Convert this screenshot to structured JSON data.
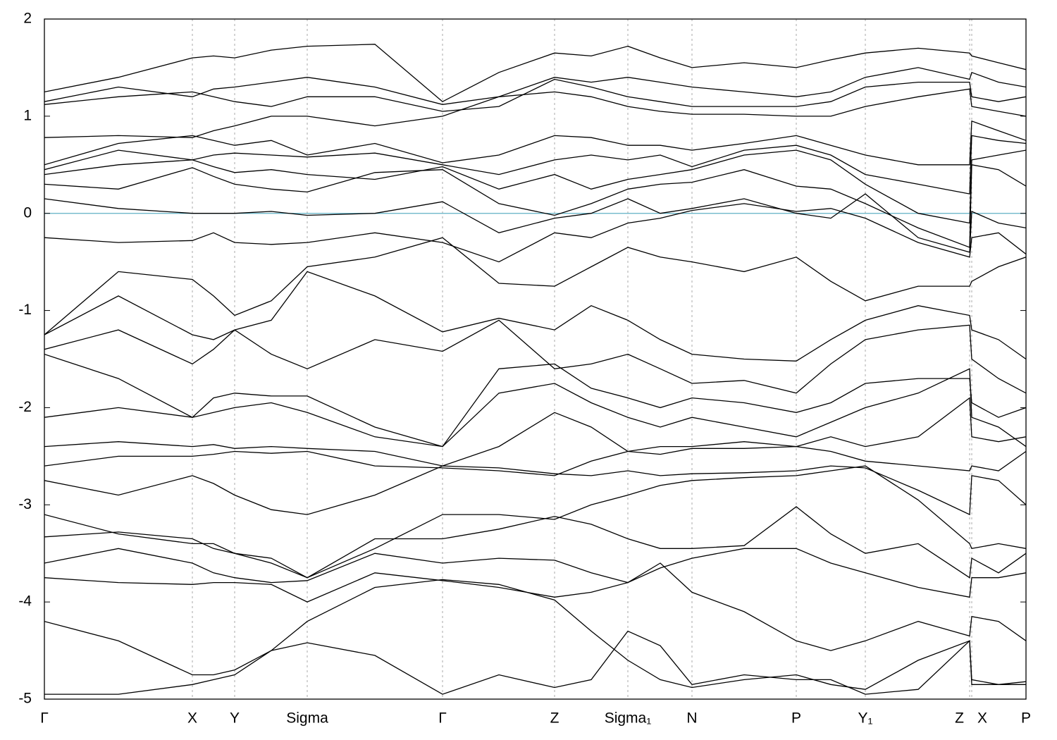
{
  "chart_data": {
    "type": "line",
    "color": "#000000",
    "xlim": [
      0,
      13.93
    ],
    "ylim": [
      -5,
      2
    ],
    "yticks": [
      -5,
      -4,
      -3,
      -2,
      -1,
      0,
      1,
      2
    ],
    "xticks": [
      {
        "value": 0,
        "label": "Γ"
      },
      {
        "value": 2.1,
        "label": "X"
      },
      {
        "value": 2.7,
        "label": "Y"
      },
      {
        "value": 3.73,
        "label": "Sigma"
      },
      {
        "value": 5.65,
        "label": "Γ"
      },
      {
        "value": 7.24,
        "label": "Z"
      },
      {
        "value": 8.28,
        "label": "Sigma₁"
      },
      {
        "value": 9.19,
        "label": "N"
      },
      {
        "value": 10.67,
        "label": "P"
      },
      {
        "value": 11.65,
        "label": "Y₁"
      },
      {
        "value": 13.13,
        "label": "Z"
      },
      {
        "value": 13.16,
        "label": "X"
      },
      {
        "value": 13.93,
        "label": "P"
      }
    ],
    "grid": true,
    "fermi_level": 0,
    "fermi_color": "#5fb0c4",
    "x": [
      0,
      1.05,
      2.1,
      2.4,
      2.7,
      3.22,
      3.73,
      4.69,
      5.65,
      6.45,
      7.24,
      7.76,
      8.28,
      8.74,
      9.19,
      9.93,
      10.67,
      11.16,
      11.65,
      12.4,
      13.13,
      13.16,
      13.54,
      13.93
    ],
    "series": [
      {
        "values": [
          1.25,
          1.4,
          1.6,
          1.62,
          1.6,
          1.68,
          1.72,
          1.74,
          1.15,
          1.45,
          1.65,
          1.62,
          1.72,
          1.6,
          1.5,
          1.55,
          1.5,
          1.58,
          1.65,
          1.7,
          1.65,
          1.62,
          1.55,
          1.48
        ]
      },
      {
        "values": [
          1.15,
          1.3,
          1.2,
          1.28,
          1.3,
          1.35,
          1.4,
          1.3,
          1.12,
          1.2,
          1.4,
          1.35,
          1.4,
          1.35,
          1.3,
          1.25,
          1.2,
          1.25,
          1.4,
          1.5,
          1.38,
          1.45,
          1.35,
          1.3
        ]
      },
      {
        "values": [
          1.12,
          1.2,
          1.25,
          1.2,
          1.15,
          1.1,
          1.2,
          1.2,
          1.05,
          1.1,
          1.38,
          1.3,
          1.2,
          1.15,
          1.1,
          1.1,
          1.1,
          1.15,
          1.3,
          1.35,
          1.35,
          1.2,
          1.15,
          1.2
        ]
      },
      {
        "values": [
          0.78,
          0.8,
          0.78,
          0.85,
          0.9,
          1.0,
          1.0,
          0.9,
          1.0,
          1.2,
          1.25,
          1.2,
          1.1,
          1.05,
          1.02,
          1.02,
          1.0,
          1.0,
          1.1,
          1.2,
          1.28,
          1.1,
          1.05,
          1.0
        ]
      },
      {
        "values": [
          0.5,
          0.72,
          0.8,
          0.75,
          0.7,
          0.75,
          0.6,
          0.72,
          0.52,
          0.6,
          0.8,
          0.78,
          0.7,
          0.7,
          0.65,
          0.72,
          0.8,
          0.7,
          0.6,
          0.5,
          0.5,
          0.95,
          0.85,
          0.75
        ]
      },
      {
        "values": [
          0.45,
          0.65,
          0.55,
          0.6,
          0.62,
          0.6,
          0.58,
          0.62,
          0.5,
          0.4,
          0.55,
          0.6,
          0.55,
          0.6,
          0.48,
          0.65,
          0.7,
          0.6,
          0.4,
          0.3,
          0.2,
          0.8,
          0.75,
          0.72
        ]
      },
      {
        "values": [
          0.4,
          0.5,
          0.55,
          0.48,
          0.42,
          0.45,
          0.4,
          0.35,
          0.48,
          0.25,
          0.4,
          0.25,
          0.35,
          0.4,
          0.45,
          0.6,
          0.65,
          0.55,
          0.3,
          0.0,
          -0.1,
          0.55,
          0.6,
          0.65
        ]
      },
      {
        "values": [
          0.3,
          0.25,
          0.47,
          0.38,
          0.3,
          0.25,
          0.22,
          0.42,
          0.45,
          0.1,
          -0.02,
          0.1,
          0.25,
          0.3,
          0.32,
          0.45,
          0.28,
          0.25,
          0.1,
          -0.15,
          -0.35,
          0.5,
          0.45,
          0.28
        ]
      },
      {
        "values": [
          0.15,
          0.05,
          0.0,
          0.0,
          0.0,
          0.02,
          -0.02,
          0.0,
          0.12,
          -0.2,
          -0.05,
          0.0,
          0.15,
          0.0,
          0.05,
          0.15,
          0.0,
          -0.05,
          0.2,
          -0.25,
          -0.4,
          0.02,
          -0.1,
          -0.15
        ]
      },
      {
        "values": [
          -0.25,
          -0.3,
          -0.28,
          -0.2,
          -0.3,
          -0.32,
          -0.3,
          -0.2,
          -0.3,
          -0.5,
          -0.2,
          -0.25,
          -0.1,
          -0.05,
          0.03,
          0.1,
          0.02,
          0.05,
          -0.05,
          -0.3,
          -0.45,
          -0.25,
          -0.2,
          -0.42
        ]
      },
      {
        "values": [
          -1.25,
          -0.6,
          -0.68,
          -0.85,
          -1.05,
          -0.9,
          -0.55,
          -0.45,
          -0.25,
          -0.72,
          -0.75,
          -0.55,
          -0.35,
          -0.45,
          -0.5,
          -0.6,
          -0.45,
          -0.7,
          -0.9,
          -0.75,
          -0.75,
          -0.7,
          -0.55,
          -0.45
        ]
      },
      {
        "values": [
          -1.25,
          -0.85,
          -1.25,
          -1.3,
          -1.2,
          -1.1,
          -0.6,
          -0.85,
          -1.22,
          -1.08,
          -1.2,
          -0.95,
          -1.1,
          -1.3,
          -1.45,
          -1.5,
          -1.52,
          -1.3,
          -1.1,
          -0.95,
          -1.05,
          -1.2,
          -1.3,
          -1.5
        ]
      },
      {
        "values": [
          -1.4,
          -1.2,
          -1.55,
          -1.4,
          -1.2,
          -1.45,
          -1.6,
          -1.3,
          -1.42,
          -1.1,
          -1.6,
          -1.55,
          -1.45,
          -1.6,
          -1.75,
          -1.72,
          -1.85,
          -1.55,
          -1.3,
          -1.2,
          -1.15,
          -1.5,
          -1.7,
          -1.85
        ]
      },
      {
        "values": [
          -1.45,
          -1.7,
          -2.1,
          -1.9,
          -1.85,
          -1.88,
          -1.88,
          -2.2,
          -2.4,
          -1.6,
          -1.55,
          -1.8,
          -1.9,
          -2.0,
          -1.9,
          -1.95,
          -2.05,
          -1.95,
          -1.75,
          -1.7,
          -1.7,
          -1.95,
          -2.1,
          -2.0
        ]
      },
      {
        "values": [
          -2.1,
          -2.0,
          -2.1,
          -2.05,
          -2.0,
          -1.95,
          -2.05,
          -2.3,
          -2.4,
          -1.85,
          -1.75,
          -1.95,
          -2.1,
          -2.2,
          -2.1,
          -2.2,
          -2.3,
          -2.15,
          -2.0,
          -1.85,
          -1.6,
          -2.1,
          -2.2,
          -2.4
        ]
      },
      {
        "values": [
          -2.4,
          -2.35,
          -2.4,
          -2.38,
          -2.42,
          -2.4,
          -2.42,
          -2.45,
          -2.6,
          -2.4,
          -2.05,
          -2.2,
          -2.45,
          -2.4,
          -2.4,
          -2.35,
          -2.4,
          -2.3,
          -2.4,
          -2.3,
          -1.9,
          -2.3,
          -2.35,
          -2.3
        ]
      },
      {
        "values": [
          -2.6,
          -2.5,
          -2.5,
          -2.48,
          -2.45,
          -2.47,
          -2.45,
          -2.6,
          -2.62,
          -2.65,
          -2.7,
          -2.55,
          -2.45,
          -2.48,
          -2.42,
          -2.42,
          -2.4,
          -2.45,
          -2.55,
          -2.6,
          -2.65,
          -2.6,
          -2.65,
          -2.45
        ]
      },
      {
        "values": [
          -2.75,
          -2.9,
          -2.7,
          -2.78,
          -2.9,
          -3.05,
          -3.1,
          -2.9,
          -2.6,
          -2.62,
          -2.68,
          -2.7,
          -2.65,
          -2.7,
          -2.68,
          -2.67,
          -2.65,
          -2.6,
          -2.62,
          -2.85,
          -3.1,
          -2.7,
          -2.75,
          -3.0
        ]
      },
      {
        "values": [
          -3.1,
          -3.3,
          -3.4,
          -3.4,
          -3.5,
          -3.6,
          -3.75,
          -3.45,
          -3.1,
          -3.1,
          -3.15,
          -3.0,
          -2.9,
          -2.8,
          -2.75,
          -2.72,
          -2.7,
          -2.65,
          -2.6,
          -2.95,
          -3.4,
          -3.45,
          -3.4,
          -3.45
        ]
      },
      {
        "values": [
          -3.33,
          -3.28,
          -3.35,
          -3.45,
          -3.5,
          -3.55,
          -3.75,
          -3.35,
          -3.35,
          -3.25,
          -3.12,
          -3.2,
          -3.35,
          -3.45,
          -3.45,
          -3.42,
          -3.02,
          -3.3,
          -3.5,
          -3.4,
          -3.75,
          -3.55,
          -3.7,
          -3.5
        ]
      },
      {
        "values": [
          -3.6,
          -3.45,
          -3.6,
          -3.7,
          -3.75,
          -3.8,
          -3.78,
          -3.5,
          -3.6,
          -3.55,
          -3.57,
          -3.7,
          -3.8,
          -3.65,
          -3.55,
          -3.45,
          -3.45,
          -3.6,
          -3.7,
          -3.85,
          -3.95,
          -3.75,
          -3.75,
          -3.7
        ]
      },
      {
        "values": [
          -3.75,
          -3.8,
          -3.82,
          -3.8,
          -3.8,
          -3.82,
          -4.0,
          -3.7,
          -3.78,
          -3.85,
          -3.95,
          -3.9,
          -3.8,
          -3.6,
          -3.9,
          -4.1,
          -4.4,
          -4.5,
          -4.4,
          -4.2,
          -4.35,
          -4.15,
          -4.2,
          -4.4
        ]
      },
      {
        "values": [
          -4.2,
          -4.4,
          -4.75,
          -4.75,
          -4.7,
          -4.5,
          -4.2,
          -3.85,
          -3.77,
          -3.82,
          -3.98,
          -4.3,
          -4.6,
          -4.8,
          -4.88,
          -4.8,
          -4.75,
          -4.85,
          -4.9,
          -4.6,
          -4.4,
          -4.8,
          -4.85,
          -4.85
        ]
      },
      {
        "values": [
          -4.95,
          -4.95,
          -4.85,
          -4.8,
          -4.75,
          -4.5,
          -4.42,
          -4.55,
          -4.95,
          -4.75,
          -4.88,
          -4.8,
          -4.3,
          -4.45,
          -4.85,
          -4.75,
          -4.8,
          -4.8,
          -4.95,
          -4.9,
          -4.4,
          -4.85,
          -4.85,
          -4.82
        ]
      }
    ]
  }
}
